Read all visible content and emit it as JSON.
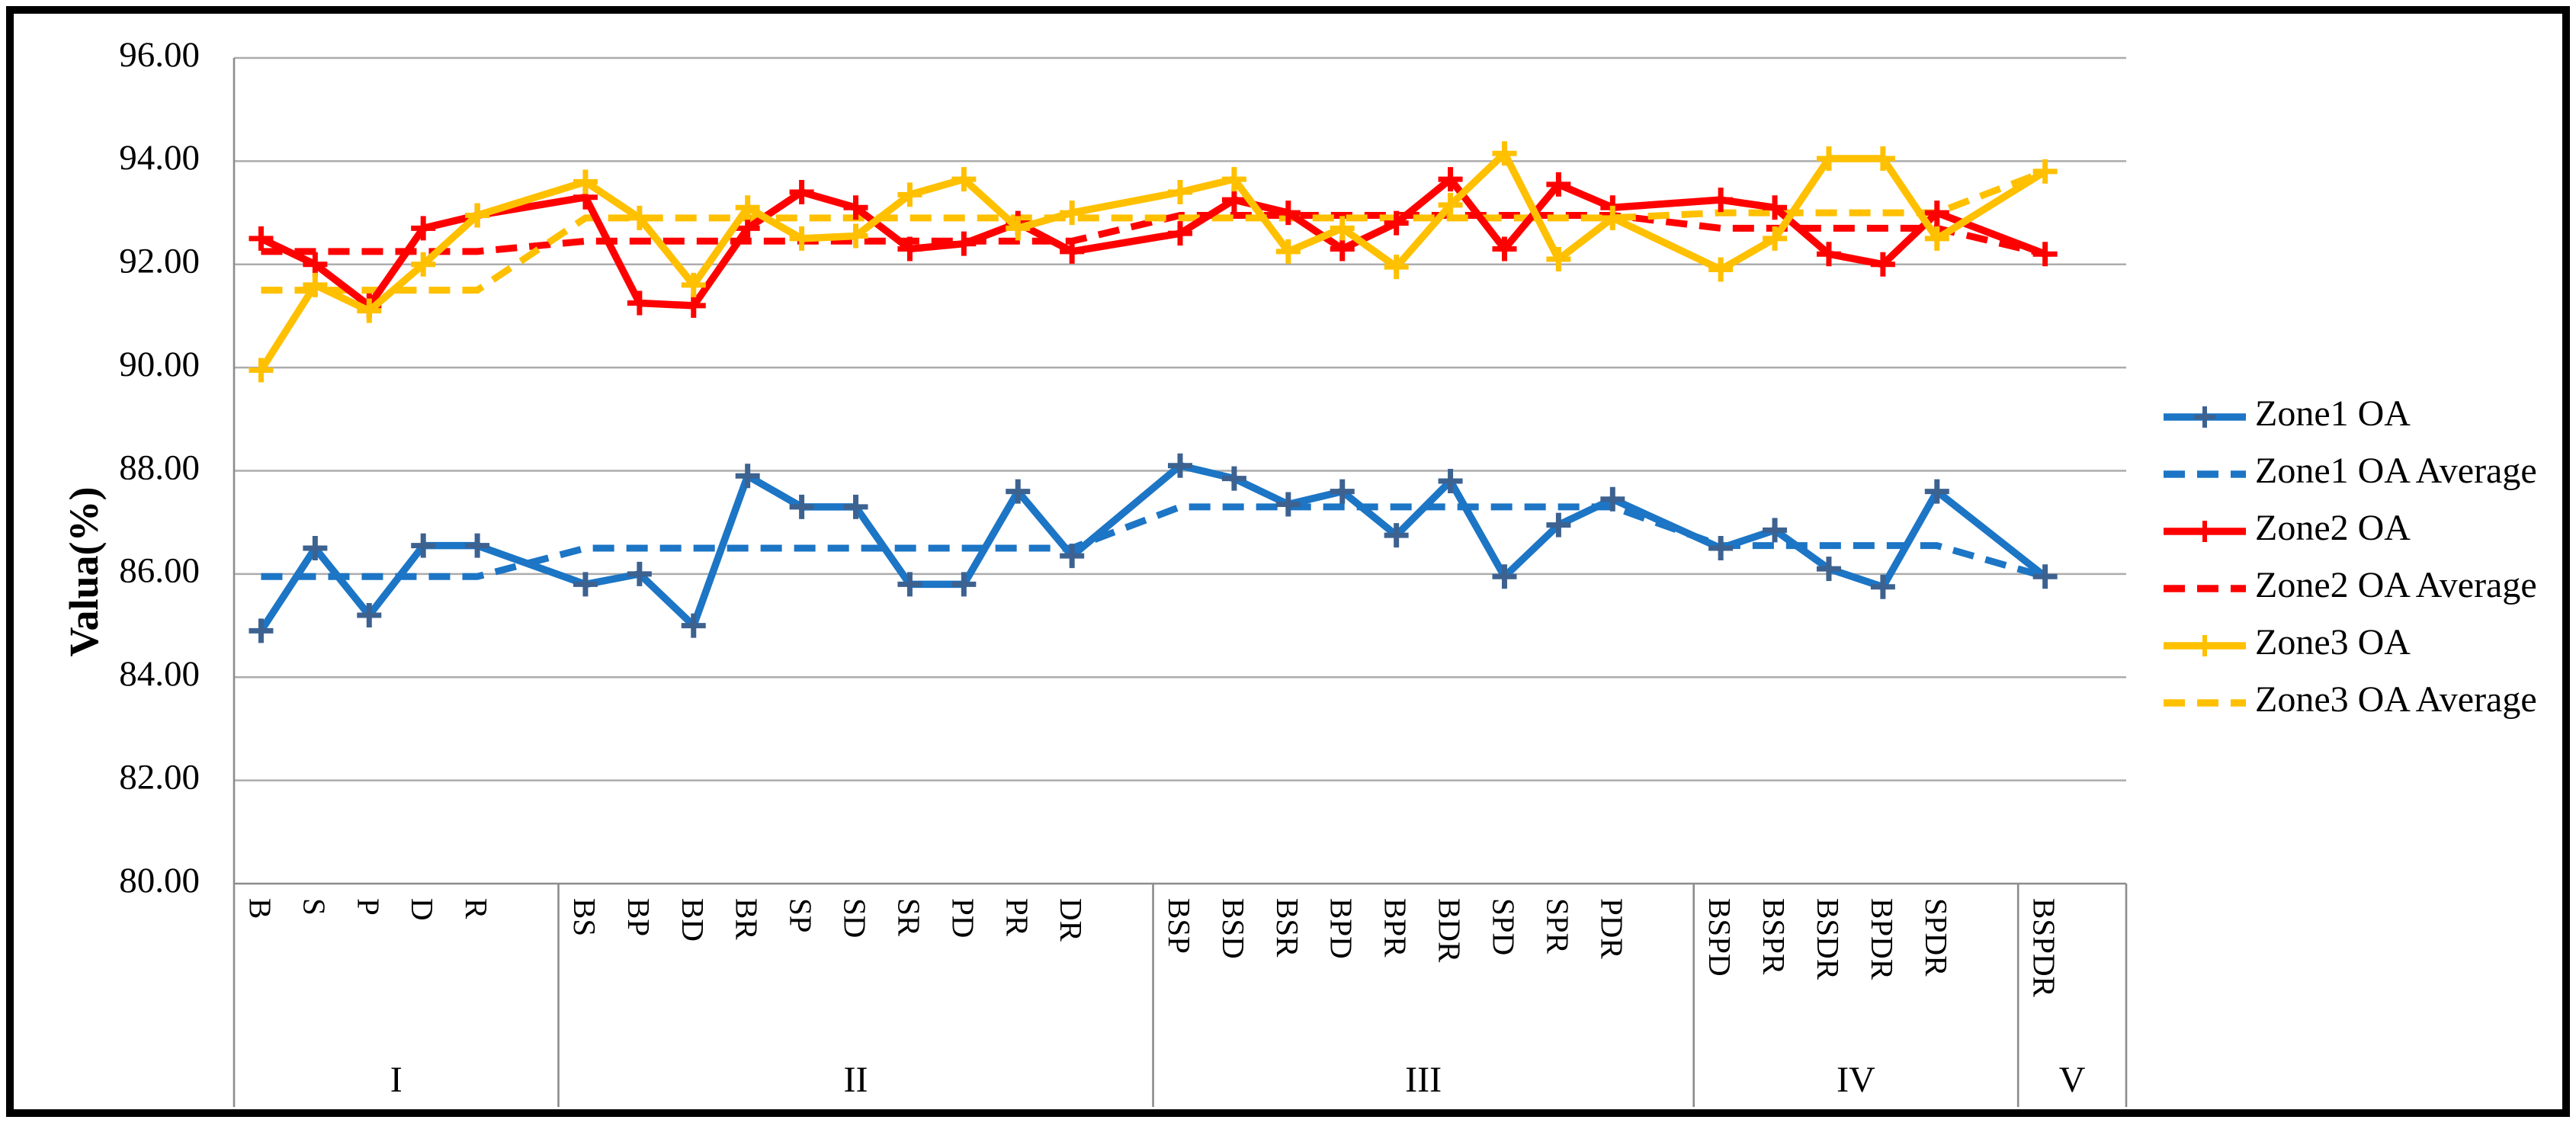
{
  "figure": {
    "frame_color": "#000000",
    "background": "#ffffff",
    "grid_color": "#ACACAC",
    "axis_color": "#8C8C8C",
    "divider_color": "#8C8C8C"
  },
  "chart_data": {
    "type": "line",
    "title": "",
    "xlabel": "",
    "ylabel": "Valua(%)",
    "ylim": [
      80,
      96
    ],
    "ytick_step": 2,
    "y_ticks": [
      "96.00",
      "94.00",
      "92.00",
      "90.00",
      "88.00",
      "86.00",
      "84.00",
      "82.00",
      "80.00"
    ],
    "grid": "horizontal",
    "legend_position": "right",
    "groups": [
      {
        "label": "I",
        "categories": [
          "B",
          "S",
          "P",
          "D",
          "R"
        ]
      },
      {
        "label": "II",
        "categories": [
          "BS",
          "BP",
          "BD",
          "BR",
          "SP",
          "SD",
          "SR",
          "PD",
          "PR",
          "DR"
        ]
      },
      {
        "label": "III",
        "categories": [
          "BSP",
          "BSD",
          "BSR",
          "BPD",
          "BPR",
          "BDR",
          "SPD",
          "SPR",
          "PDR"
        ]
      },
      {
        "label": "IV",
        "categories": [
          "BSPD",
          "BSPR",
          "BSDR",
          "BPDR",
          "SPDR"
        ]
      },
      {
        "label": "V",
        "categories": [
          "BSPDR"
        ]
      }
    ],
    "series": [
      {
        "name": "Zone1 OA",
        "color": "#1C75C5",
        "marker_color": "#3D6290",
        "style": "solid",
        "marker": "plus",
        "values": [
          84.9,
          86.5,
          85.2,
          86.55,
          86.55,
          85.8,
          86.0,
          85.0,
          87.9,
          87.3,
          87.3,
          85.8,
          85.8,
          87.6,
          86.35,
          88.1,
          87.85,
          87.35,
          87.6,
          86.75,
          87.8,
          85.95,
          86.95,
          87.45,
          86.5,
          86.85,
          86.1,
          85.75,
          87.6,
          85.95
        ]
      },
      {
        "name": "Zone1 OA Average",
        "color": "#1C75C5",
        "style": "dashed",
        "group_averages": [
          85.95,
          86.5,
          87.3,
          86.55,
          85.95
        ]
      },
      {
        "name": "Zone2 OA",
        "color": "#FF0000",
        "marker_color": "#FF0000",
        "style": "solid",
        "marker": "plus",
        "values": [
          92.5,
          92.0,
          91.2,
          92.7,
          92.95,
          93.3,
          91.25,
          91.2,
          92.7,
          93.4,
          93.1,
          92.3,
          92.4,
          92.8,
          92.25,
          92.6,
          93.25,
          93.0,
          92.3,
          92.8,
          93.65,
          92.3,
          93.55,
          93.1,
          93.25,
          93.1,
          92.2,
          92.0,
          93.0,
          92.2
        ]
      },
      {
        "name": "Zone2 OA Average",
        "color": "#FF0000",
        "style": "dashed",
        "group_averages": [
          92.25,
          92.45,
          92.95,
          92.7,
          92.2
        ]
      },
      {
        "name": "Zone3 OA",
        "color": "#FFC000",
        "marker_color": "#FFC000",
        "style": "solid",
        "marker": "plus",
        "values": [
          89.95,
          91.6,
          91.1,
          92.0,
          92.95,
          93.6,
          92.9,
          91.6,
          93.1,
          92.5,
          92.55,
          93.35,
          93.65,
          92.7,
          93.0,
          93.4,
          93.65,
          92.25,
          92.7,
          91.95,
          93.15,
          94.15,
          92.1,
          92.9,
          91.9,
          92.5,
          94.05,
          94.05,
          92.5,
          93.8
        ]
      },
      {
        "name": "Zone3 OA Average",
        "color": "#FFC000",
        "style": "dashed",
        "group_averages": [
          91.5,
          92.9,
          92.9,
          93.0,
          93.8
        ]
      }
    ]
  }
}
